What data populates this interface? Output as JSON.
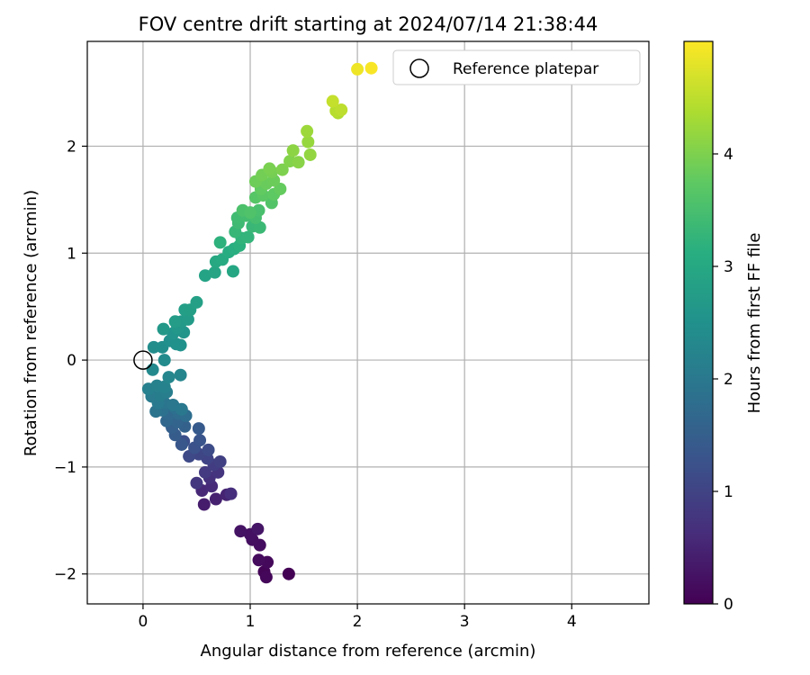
{
  "chart_data": {
    "type": "scatter",
    "title": "FOV centre drift starting at 2024/07/14 21:38:44",
    "xlabel": "Angular distance from reference (arcmin)",
    "ylabel": "Rotation from reference (arcmin)",
    "xlim": [
      -0.52,
      4.72
    ],
    "ylim": [
      -2.28,
      2.98
    ],
    "xticks": [
      0,
      1,
      2,
      3,
      4
    ],
    "yticks": [
      -2,
      -1,
      0,
      1,
      2
    ],
    "grid": true,
    "legend": {
      "placement": "top-right",
      "entries": [
        "Reference platepar"
      ]
    },
    "reference_point": {
      "name": "Reference platepar",
      "x": 0,
      "y": 0,
      "marker": "open-circle"
    },
    "colorbar": {
      "label": "Hours from first FF file",
      "colormap": "viridis",
      "range": [
        0,
        5.0
      ],
      "ticks": [
        0,
        1,
        2,
        3,
        4
      ]
    },
    "point_columns": [
      "x",
      "y",
      "hours"
    ],
    "points": [
      [
        1.36,
        -2.0,
        0.02
      ],
      [
        1.13,
        -1.98,
        0.05
      ],
      [
        1.15,
        -2.03,
        0.08
      ],
      [
        1.16,
        -1.89,
        0.11
      ],
      [
        1.08,
        -1.87,
        0.14
      ],
      [
        1.09,
        -1.73,
        0.17
      ],
      [
        1.02,
        -1.68,
        0.2
      ],
      [
        1.0,
        -1.63,
        0.23
      ],
      [
        0.91,
        -1.6,
        0.26
      ],
      [
        1.07,
        -1.58,
        0.29
      ],
      [
        0.57,
        -1.35,
        0.4
      ],
      [
        0.68,
        -1.3,
        0.45
      ],
      [
        0.78,
        -1.26,
        0.5
      ],
      [
        0.55,
        -1.22,
        0.55
      ],
      [
        0.64,
        -1.18,
        0.6
      ],
      [
        0.82,
        -1.25,
        0.65
      ],
      [
        0.62,
        -1.1,
        0.7
      ],
      [
        0.7,
        -1.05,
        0.75
      ],
      [
        0.5,
        -1.15,
        0.8
      ],
      [
        0.58,
        -1.05,
        0.85
      ],
      [
        0.66,
        -0.98,
        0.9
      ],
      [
        0.72,
        -0.95,
        0.95
      ],
      [
        0.6,
        -0.92,
        1.0
      ],
      [
        0.52,
        -0.88,
        1.05
      ],
      [
        0.43,
        -0.9,
        1.1
      ],
      [
        0.61,
        -0.84,
        1.15
      ],
      [
        0.38,
        -0.76,
        1.2
      ],
      [
        0.48,
        -0.82,
        1.25
      ],
      [
        0.53,
        -0.75,
        1.3
      ],
      [
        0.36,
        -0.79,
        1.35
      ],
      [
        0.52,
        -0.64,
        1.4
      ],
      [
        0.3,
        -0.7,
        1.45
      ],
      [
        0.27,
        -0.63,
        1.5
      ],
      [
        0.39,
        -0.62,
        1.55
      ],
      [
        0.32,
        -0.58,
        1.6
      ],
      [
        0.22,
        -0.57,
        1.65
      ],
      [
        0.24,
        -0.51,
        1.7
      ],
      [
        0.33,
        -0.5,
        1.75
      ],
      [
        0.4,
        -0.52,
        1.78
      ],
      [
        0.3,
        -0.45,
        1.82
      ],
      [
        0.18,
        -0.47,
        1.86
      ],
      [
        0.12,
        -0.48,
        1.9
      ],
      [
        0.2,
        -0.4,
        1.94
      ],
      [
        0.28,
        -0.42,
        1.97
      ],
      [
        0.36,
        -0.46,
        2.0
      ],
      [
        0.14,
        -0.4,
        2.03
      ],
      [
        0.08,
        -0.34,
        2.06
      ],
      [
        0.16,
        -0.33,
        2.09
      ],
      [
        0.22,
        -0.3,
        2.12
      ],
      [
        0.05,
        -0.27,
        2.15
      ],
      [
        0.13,
        -0.24,
        2.18
      ],
      [
        0.2,
        -0.25,
        2.21
      ],
      [
        0.35,
        -0.14,
        2.25
      ],
      [
        0.24,
        -0.16,
        2.29
      ],
      [
        0.09,
        -0.09,
        2.33
      ],
      [
        0.2,
        0.0,
        2.37
      ],
      [
        0.1,
        0.12,
        2.41
      ],
      [
        0.18,
        0.12,
        2.44
      ],
      [
        0.25,
        0.18,
        2.47
      ],
      [
        0.31,
        0.15,
        2.5
      ],
      [
        0.35,
        0.14,
        2.53
      ],
      [
        0.28,
        0.25,
        2.56
      ],
      [
        0.38,
        0.26,
        2.59
      ],
      [
        0.32,
        0.3,
        2.62
      ],
      [
        0.19,
        0.29,
        2.65
      ],
      [
        0.36,
        0.36,
        2.68
      ],
      [
        0.42,
        0.38,
        2.71
      ],
      [
        0.3,
        0.36,
        2.74
      ],
      [
        0.39,
        0.47,
        2.77
      ],
      [
        0.44,
        0.47,
        2.8
      ],
      [
        0.5,
        0.54,
        2.83
      ],
      [
        0.58,
        0.79,
        2.88
      ],
      [
        0.67,
        0.82,
        2.92
      ],
      [
        0.84,
        0.83,
        2.96
      ],
      [
        0.68,
        0.92,
        3.0
      ],
      [
        0.74,
        0.94,
        3.04
      ],
      [
        0.8,
        1.01,
        3.08
      ],
      [
        0.85,
        1.04,
        3.12
      ],
      [
        0.9,
        1.07,
        3.16
      ],
      [
        0.72,
        1.1,
        3.2
      ],
      [
        0.92,
        1.14,
        3.23
      ],
      [
        0.98,
        1.15,
        3.26
      ],
      [
        0.86,
        1.2,
        3.3
      ],
      [
        1.02,
        1.25,
        3.33
      ],
      [
        1.09,
        1.24,
        3.36
      ],
      [
        0.89,
        1.28,
        3.39
      ],
      [
        0.88,
        1.33,
        3.42
      ],
      [
        0.96,
        1.35,
        3.45
      ],
      [
        1.05,
        1.33,
        3.48
      ],
      [
        1.08,
        1.4,
        3.52
      ],
      [
        0.93,
        1.4,
        3.55
      ],
      [
        1.0,
        1.38,
        3.58
      ],
      [
        1.2,
        1.47,
        3.62
      ],
      [
        1.05,
        1.52,
        3.66
      ],
      [
        1.12,
        1.54,
        3.7
      ],
      [
        1.22,
        1.55,
        3.74
      ],
      [
        1.1,
        1.6,
        3.77
      ],
      [
        1.28,
        1.6,
        3.8
      ],
      [
        1.15,
        1.65,
        3.83
      ],
      [
        1.22,
        1.68,
        3.86
      ],
      [
        1.05,
        1.67,
        3.88
      ],
      [
        1.11,
        1.73,
        3.91
      ],
      [
        1.2,
        1.76,
        3.94
      ],
      [
        1.18,
        1.79,
        3.97
      ],
      [
        1.3,
        1.78,
        4.0
      ],
      [
        1.37,
        1.86,
        4.04
      ],
      [
        1.45,
        1.85,
        4.08
      ],
      [
        1.4,
        1.96,
        4.12
      ],
      [
        1.56,
        1.92,
        4.16
      ],
      [
        1.54,
        2.04,
        4.2
      ],
      [
        1.53,
        2.14,
        4.25
      ],
      [
        1.82,
        2.31,
        4.4
      ],
      [
        1.8,
        2.33,
        4.45
      ],
      [
        1.85,
        2.34,
        4.5
      ],
      [
        1.77,
        2.42,
        4.56
      ],
      [
        2.0,
        2.72,
        4.88
      ],
      [
        2.13,
        2.73,
        4.96
      ]
    ]
  }
}
